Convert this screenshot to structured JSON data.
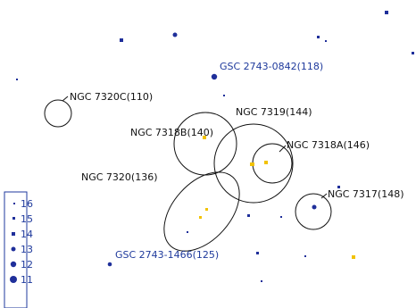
{
  "chart_data": {
    "type": "scatter",
    "colors": {
      "star": "#1f2f9a",
      "galaxy_core": "#f2c200",
      "outline": "#111111",
      "legend_border": "#1f3a9c",
      "label_blue": "#1f3a9c"
    },
    "object_labels": [
      {
        "text": "NGC 7320C(110)",
        "color": "black"
      },
      {
        "text": "NGC 7318B(140)",
        "color": "black"
      },
      {
        "text": "NGC 7319(144)",
        "color": "black"
      },
      {
        "text": "NGC 7318A(146)",
        "color": "black"
      },
      {
        "text": "NGC 7320(136)",
        "color": "black"
      },
      {
        "text": "NGC 7317(148)",
        "color": "black"
      },
      {
        "text": "GSC 2743-0842(118)",
        "color": "blue"
      },
      {
        "text": "GSC 2743-1466(125)",
        "color": "blue"
      }
    ],
    "legend": {
      "title": "",
      "entries": [
        {
          "label": "16"
        },
        {
          "label": "15"
        },
        {
          "label": "14"
        },
        {
          "label": "13"
        },
        {
          "label": "12"
        },
        {
          "label": "11"
        }
      ]
    }
  }
}
